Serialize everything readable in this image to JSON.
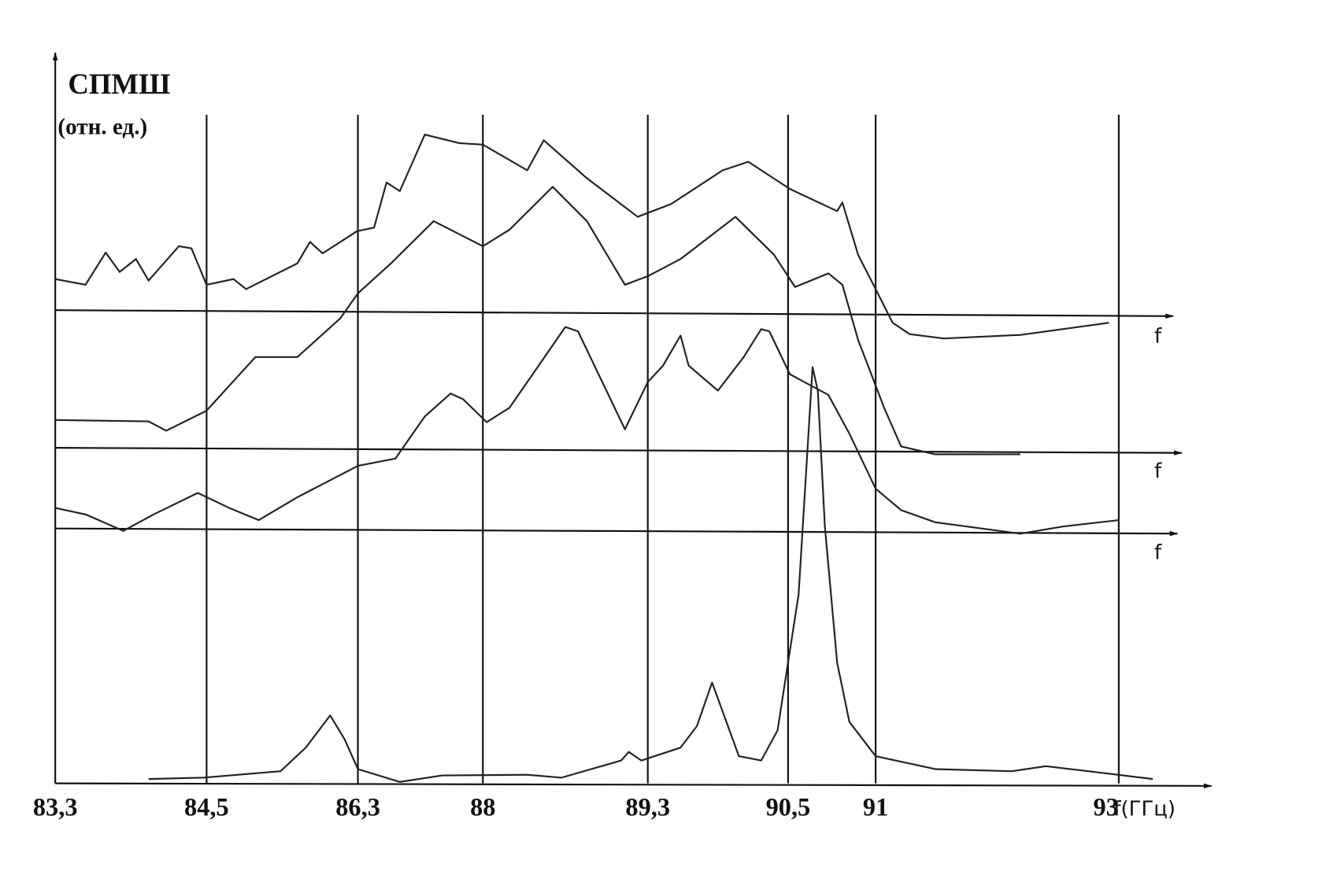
{
  "chart_data": {
    "type": "line",
    "ylabel": "СПМШ",
    "ylabel_units": "(отн. ед.)",
    "xlabel": "f(ГГц)",
    "baseline_labels": [
      "f",
      "f",
      "f"
    ],
    "xlim": [
      83.3,
      93.7
    ],
    "ylim": [
      0,
      100
    ],
    "grid": true,
    "xticks": [
      {
        "value": 83.3,
        "label": "83,3"
      },
      {
        "value": 84.5,
        "label": "84,5"
      },
      {
        "value": 86.3,
        "label": "86,3"
      },
      88,
      {
        "value": 89.3,
        "label": "89,3"
      },
      {
        "value": 90.5,
        "label": "90,5"
      },
      91,
      93
    ],
    "series": [
      {
        "color": "#222",
        "x": [
          83.3,
          83.54,
          83.7,
          83.81,
          83.94,
          84.04,
          84.28,
          84.38,
          84.5,
          84.82,
          84.97,
          85.58,
          85.73,
          85.88,
          86.29,
          86.52,
          86.69,
          86.87,
          87.21,
          87.68,
          88.0,
          88.35,
          88.48,
          88.82,
          89.22,
          89.5,
          89.94,
          90.16,
          90.51,
          90.78,
          90.81,
          90.9,
          91.0,
          91.14,
          91.28,
          91.56,
          92.19,
          92.92
        ],
        "values": [
          70.5,
          69.7,
          74.2,
          71.5,
          73.3,
          70.3,
          75.1,
          74.8,
          69.7,
          70.5,
          69.1,
          72.7,
          75.7,
          74.1,
          77.2,
          77.7,
          84.0,
          82.8,
          90.7,
          89.5,
          89.3,
          85.7,
          89.9,
          84.6,
          79.2,
          81.0,
          85.7,
          86.9,
          83.1,
          80.0,
          81.2,
          73.9,
          69.1,
          64.4,
          62.8,
          62.2,
          62.7,
          64.4
        ]
      },
      {
        "color": "#222",
        "x": [
          83.3,
          84.04,
          84.18,
          84.5,
          85.08,
          85.58,
          86.09,
          86.3,
          86.75,
          87.33,
          88.0,
          88.21,
          88.55,
          88.82,
          89.12,
          89.3,
          89.58,
          90.05,
          90.38,
          90.54,
          90.73,
          90.81,
          90.9,
          91.07,
          91.21,
          91.49,
          92.19
        ],
        "values": [
          50.8,
          50.6,
          49.3,
          52.1,
          59.6,
          59.6,
          65.0,
          68.5,
          72.7,
          78.6,
          75.1,
          77.4,
          83.4,
          78.6,
          69.7,
          70.9,
          73.3,
          79.2,
          73.9,
          69.4,
          71.3,
          69.7,
          62.0,
          52.5,
          47.1,
          46.0,
          46.0
        ]
      },
      {
        "color": "#222",
        "x": [
          83.3,
          83.54,
          83.84,
          84.08,
          84.43,
          84.77,
          85.12,
          85.58,
          86.3,
          86.81,
          87.21,
          87.56,
          87.73,
          88.03,
          88.21,
          88.65,
          88.75,
          89.12,
          89.3,
          89.43,
          89.58,
          89.65,
          89.9,
          90.12,
          90.27,
          90.34,
          90.51,
          90.73,
          90.85,
          91.0,
          91.21,
          91.49,
          92.19,
          92.54,
          93.0
        ],
        "values": [
          38.5,
          37.6,
          35.3,
          37.6,
          40.6,
          38.5,
          36.8,
          40.0,
          44.4,
          45.4,
          51.3,
          54.5,
          53.7,
          50.5,
          52.5,
          63.8,
          63.2,
          49.5,
          56.1,
          58.4,
          62.6,
          58.4,
          54.9,
          59.6,
          63.5,
          63.2,
          57.2,
          54.3,
          48.9,
          41.2,
          38.2,
          36.5,
          34.9,
          35.9,
          36.8
        ]
      },
      {
        "color": "#222",
        "x": [
          84.04,
          84.47,
          85.38,
          85.68,
          85.97,
          86.14,
          86.3,
          86.87,
          87.45,
          88.35,
          88.62,
          89.09,
          89.15,
          89.25,
          89.58,
          89.72,
          89.85,
          90.08,
          90.27,
          90.41,
          90.56,
          90.64,
          90.67,
          90.71,
          90.78,
          90.85,
          91.0,
          91.49,
          92.12,
          92.4,
          92.75,
          93.27
        ],
        "values": [
          0.6,
          0.8,
          1.7,
          5.0,
          9.5,
          6.2,
          2.0,
          0.2,
          1.1,
          1.2,
          0.8,
          3.2,
          4.4,
          3.2,
          5.0,
          8.0,
          14.1,
          3.8,
          3.2,
          7.4,
          26.4,
          58.2,
          54.9,
          35.9,
          16.9,
          8.6,
          3.8,
          2.0,
          1.7,
          2.4,
          1.7,
          0.6
        ]
      }
    ]
  }
}
